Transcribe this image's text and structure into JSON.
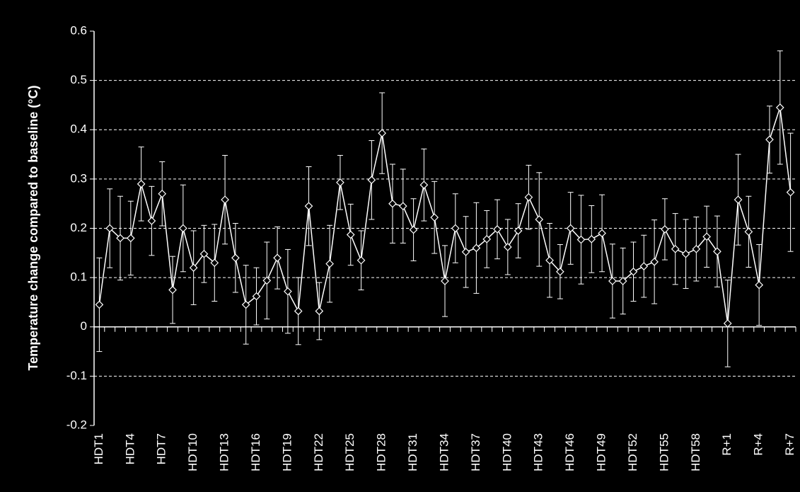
{
  "chart_data": {
    "type": "line",
    "ylabel": "Temperature change compared to baseline (°C)",
    "categories": [
      "HDT1",
      null,
      null,
      "HDT4",
      null,
      null,
      "HDT7",
      null,
      null,
      "HDT10",
      null,
      null,
      "HDT13",
      null,
      null,
      "HDT16",
      null,
      null,
      "HDT19",
      null,
      null,
      "HDT22",
      null,
      null,
      "HDT25",
      null,
      null,
      "HDT28",
      null,
      null,
      "HDT31",
      null,
      null,
      "HDT34",
      null,
      null,
      "HDT37",
      null,
      null,
      "HDT40",
      null,
      null,
      "HDT43",
      null,
      null,
      "HDT46",
      null,
      null,
      "HDT49",
      null,
      null,
      "HDT52",
      null,
      null,
      "HDT55",
      null,
      null,
      "HDT58",
      null,
      null,
      "R+1",
      null,
      null,
      "R+4",
      null,
      null,
      "R+7"
    ],
    "values": [
      0.045,
      0.2,
      0.18,
      0.18,
      0.29,
      0.215,
      0.27,
      0.075,
      0.2,
      0.12,
      0.148,
      0.13,
      0.258,
      0.14,
      0.045,
      0.062,
      0.094,
      0.14,
      0.072,
      0.032,
      0.245,
      0.032,
      0.128,
      0.293,
      0.187,
      0.135,
      0.298,
      0.393,
      0.25,
      0.245,
      0.197,
      0.288,
      0.222,
      0.093,
      0.2,
      0.152,
      0.16,
      0.178,
      0.198,
      0.162,
      0.195,
      0.263,
      0.218,
      0.135,
      0.112,
      0.2,
      0.177,
      0.178,
      0.19,
      0.093,
      0.093,
      0.112,
      0.123,
      0.132,
      0.198,
      0.158,
      0.148,
      0.158,
      0.183,
      0.153,
      0.007,
      0.258,
      0.193,
      0.085,
      0.38,
      0.445,
      0.273
    ],
    "errors": [
      0.095,
      0.08,
      0.085,
      0.075,
      0.075,
      0.07,
      0.065,
      0.068,
      0.088,
      0.075,
      0.058,
      0.078,
      0.09,
      0.07,
      0.08,
      0.058,
      0.078,
      0.063,
      0.085,
      0.068,
      0.08,
      0.058,
      0.078,
      0.055,
      0.062,
      0.06,
      0.08,
      0.082,
      0.08,
      0.075,
      0.063,
      0.073,
      0.073,
      0.072,
      0.07,
      0.072,
      0.092,
      0.058,
      0.06,
      0.056,
      0.055,
      0.065,
      0.095,
      0.075,
      0.055,
      0.073,
      0.09,
      0.068,
      0.078,
      0.075,
      0.067,
      0.06,
      0.063,
      0.085,
      0.062,
      0.072,
      0.07,
      0.065,
      0.062,
      0.072,
      0.088,
      0.092,
      0.072,
      0.082,
      0.068,
      0.115,
      0.12
    ],
    "color": "#ffffff",
    "ylim": [
      -0.2,
      0.6
    ],
    "yticks": [
      -0.2,
      -0.1,
      0,
      0.1,
      0.2,
      0.3,
      0.4,
      0.5,
      0.6
    ],
    "grid": true
  }
}
